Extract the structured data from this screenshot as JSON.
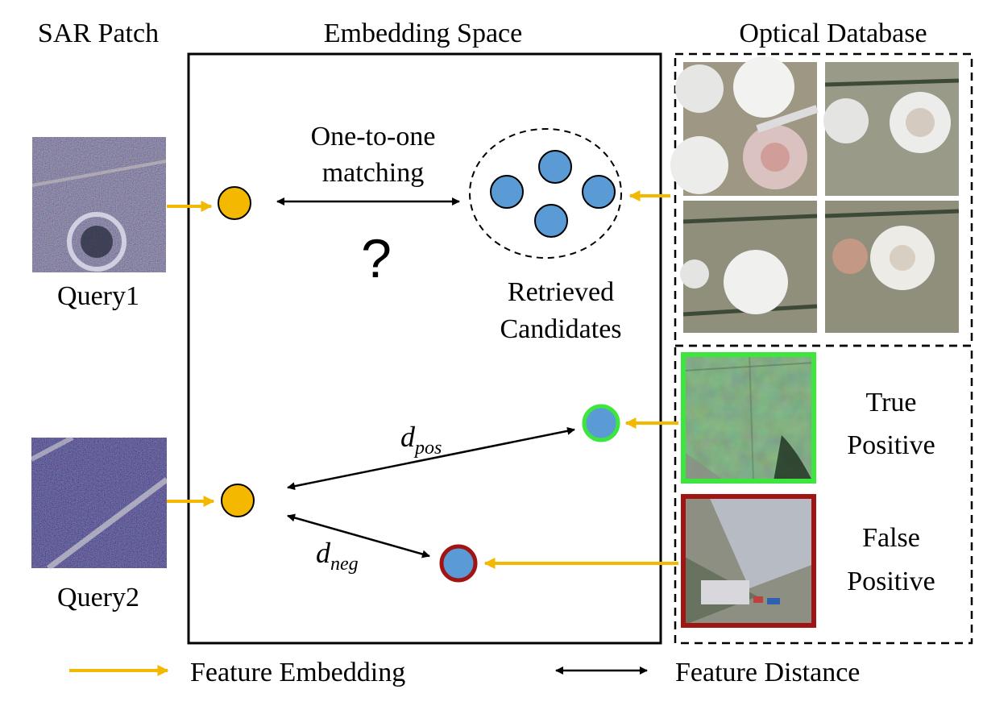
{
  "headers": {
    "sar": "SAR Patch",
    "embedding": "Embedding Space",
    "optical": "Optical Database"
  },
  "queries": {
    "q1": "Query1",
    "q2": "Query2"
  },
  "matching": {
    "line1": "One-to-one",
    "line2": "matching",
    "question": "?"
  },
  "candidates": {
    "line1": "Retrieved",
    "line2": "Candidates"
  },
  "distances": {
    "pos_base": "d",
    "pos_sub": "pos",
    "neg_base": "d",
    "neg_sub": "neg"
  },
  "examples": {
    "tp_line1": "True",
    "tp_line2": "Positive",
    "fp_line1": "False",
    "fp_line2": "Positive"
  },
  "legend": {
    "embedding": "Feature Embedding",
    "distance": "Feature Distance"
  },
  "colors": {
    "query_point": "#f5b800",
    "candidate_point": "#5b9bd5",
    "embedding_arrow": "#f5b800",
    "true_positive_border": "#3ce63c",
    "false_positive_border": "#a01414"
  }
}
